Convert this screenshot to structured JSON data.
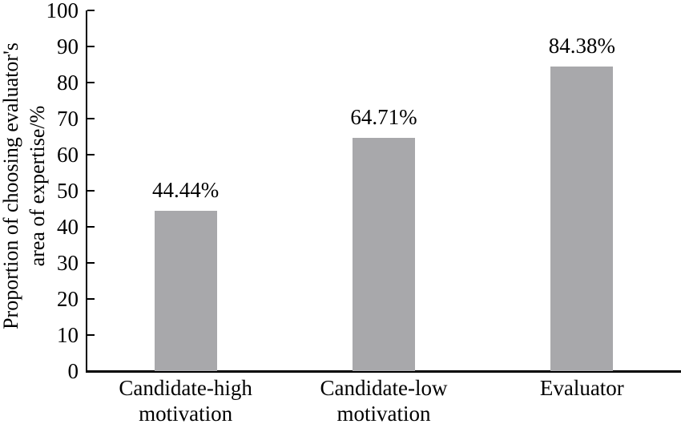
{
  "chart_data": {
    "type": "bar",
    "title": "",
    "categories": [
      "Candidate-high motivation",
      "Candidate-low motivation",
      "Evaluator"
    ],
    "category_lines": [
      [
        "Candidate-high",
        "motivation"
      ],
      [
        "Candidate-low",
        "motivation"
      ],
      [
        "Evaluator"
      ]
    ],
    "values": [
      44.44,
      64.71,
      84.38
    ],
    "value_labels": [
      "44.44%",
      "64.71%",
      "84.38%"
    ],
    "xlabel": "",
    "ylabel": "Proportion of choosing evaluator's area of expertise/%",
    "ylabel_lines": [
      "Proportion of choosing evaluator's",
      "area of expertise/%"
    ],
    "ylim": [
      0,
      100
    ],
    "yticks": [
      0,
      10,
      20,
      30,
      40,
      50,
      60,
      70,
      80,
      90,
      100
    ],
    "grid": false,
    "legend": null,
    "colors": {
      "bar": "#a8a8ab",
      "axis": "#000000",
      "text": "#000000",
      "background": "#ffffff"
    }
  }
}
